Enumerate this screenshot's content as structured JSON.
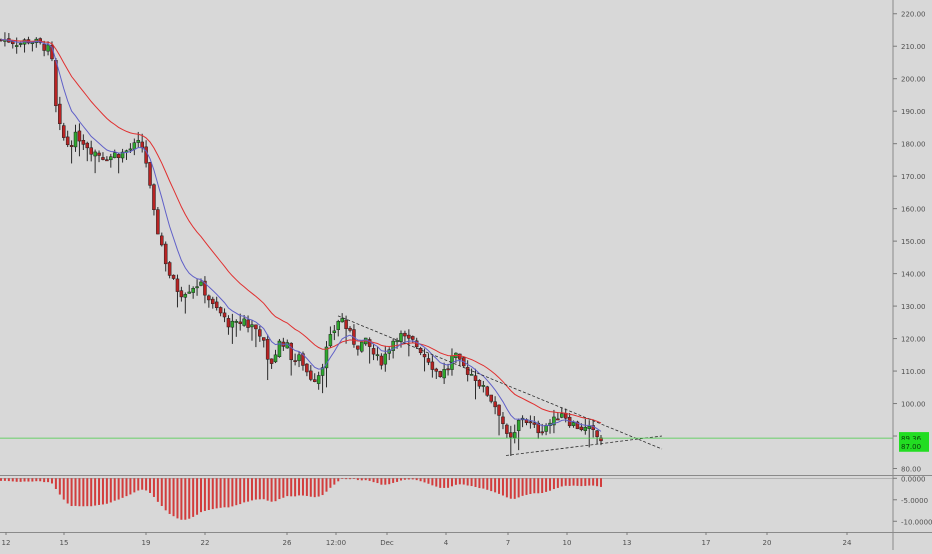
{
  "chart_data": {
    "type": "candlestick",
    "main_panel": {
      "y_axis": {
        "range": [
          84,
          220
        ],
        "tick_labels": [
          "220.00",
          "210.00",
          "200.00",
          "190.00",
          "180.00",
          "170.00",
          "160.00",
          "150.00",
          "140.00",
          "130.00",
          "120.00",
          "110.00",
          "100.00",
          "90.00",
          "80.00"
        ],
        "tick_values": [
          220,
          210,
          200,
          190,
          180,
          170,
          160,
          150,
          140,
          130,
          120,
          110,
          100,
          90,
          80
        ]
      },
      "x_axis": {
        "tick_labels": [
          "12",
          "15",
          "19",
          "22",
          "26",
          "12:00",
          "Dec",
          "4",
          "7",
          "10",
          "13",
          "17",
          "20",
          "24"
        ],
        "tick_positions": [
          6,
          64,
          146,
          205,
          287,
          336,
          387,
          446,
          508,
          567,
          627,
          706,
          767,
          847
        ]
      },
      "last_price_label": "89.36",
      "current_price_label": "87.00",
      "last_price": 89.36,
      "current_price": 87.0,
      "horizontal_line": 89.36,
      "candles_count": 154,
      "series": [
        {
          "kind": "ema_fast",
          "color": "#6060c8"
        },
        {
          "kind": "ema_slow",
          "color": "#e03030"
        }
      ],
      "trendlines": [
        {
          "from": [
            338,
            127
          ],
          "to": [
            662,
            86
          ]
        },
        {
          "from": [
            506,
            84
          ],
          "to": [
            662,
            90
          ]
        }
      ],
      "anchors": [
        [
          0,
          212
        ],
        [
          8,
          212
        ],
        [
          20,
          211
        ],
        [
          30,
          212
        ],
        [
          42,
          210
        ],
        [
          47,
          210
        ],
        [
          52,
          205
        ],
        [
          55,
          193
        ],
        [
          58,
          186
        ],
        [
          62,
          183
        ],
        [
          66,
          180
        ],
        [
          70,
          180
        ],
        [
          75,
          182
        ],
        [
          80,
          182
        ],
        [
          86,
          180
        ],
        [
          92,
          178
        ],
        [
          98,
          177
        ],
        [
          104,
          176
        ],
        [
          110,
          176
        ],
        [
          116,
          177
        ],
        [
          122,
          177
        ],
        [
          128,
          178
        ],
        [
          134,
          179
        ],
        [
          140,
          180
        ],
        [
          144,
          178
        ],
        [
          148,
          171
        ],
        [
          152,
          161
        ],
        [
          156,
          155
        ],
        [
          160,
          151
        ],
        [
          164,
          146
        ],
        [
          168,
          141
        ],
        [
          172,
          138
        ],
        [
          176,
          136
        ],
        [
          180,
          134
        ],
        [
          186,
          135
        ],
        [
          192,
          136
        ],
        [
          198,
          137
        ],
        [
          204,
          135
        ],
        [
          208,
          133
        ],
        [
          212,
          130
        ],
        [
          216,
          129
        ],
        [
          220,
          128
        ],
        [
          224,
          126
        ],
        [
          228,
          125
        ],
        [
          232,
          124
        ],
        [
          236,
          124
        ],
        [
          240,
          125
        ],
        [
          244,
          126
        ],
        [
          248,
          124
        ],
        [
          252,
          124
        ],
        [
          256,
          123
        ],
        [
          260,
          122
        ],
        [
          264,
          118
        ],
        [
          268,
          112
        ],
        [
          272,
          113
        ],
        [
          276,
          116
        ],
        [
          280,
          119
        ],
        [
          284,
          119
        ],
        [
          288,
          117
        ],
        [
          292,
          114
        ],
        [
          296,
          113
        ],
        [
          300,
          114
        ],
        [
          304,
          112
        ],
        [
          308,
          109
        ],
        [
          312,
          108
        ],
        [
          316,
          108
        ],
        [
          320,
          110
        ],
        [
          324,
          114
        ],
        [
          328,
          118
        ],
        [
          332,
          121
        ],
        [
          336,
          124
        ],
        [
          340,
          127
        ],
        [
          344,
          125
        ],
        [
          348,
          122
        ],
        [
          352,
          120
        ],
        [
          356,
          118
        ],
        [
          360,
          118
        ],
        [
          364,
          119
        ],
        [
          368,
          118
        ],
        [
          372,
          116
        ],
        [
          376,
          114
        ],
        [
          380,
          113
        ],
        [
          384,
          114
        ],
        [
          388,
          117
        ],
        [
          392,
          119
        ],
        [
          396,
          121
        ],
        [
          400,
          121
        ],
        [
          404,
          120
        ],
        [
          408,
          119
        ],
        [
          412,
          119
        ],
        [
          416,
          118
        ],
        [
          420,
          117
        ],
        [
          424,
          115
        ],
        [
          428,
          114
        ],
        [
          432,
          112
        ],
        [
          436,
          110
        ],
        [
          440,
          109
        ],
        [
          444,
          110
        ],
        [
          448,
          111
        ],
        [
          452,
          114
        ],
        [
          456,
          114
        ],
        [
          460,
          112
        ],
        [
          464,
          111
        ],
        [
          468,
          110
        ],
        [
          472,
          109
        ],
        [
          476,
          108
        ],
        [
          480,
          106
        ],
        [
          484,
          104
        ],
        [
          488,
          103
        ],
        [
          492,
          101
        ],
        [
          496,
          99
        ],
        [
          500,
          97
        ],
        [
          504,
          93
        ],
        [
          508,
          88
        ],
        [
          512,
          89
        ],
        [
          516,
          91
        ],
        [
          520,
          96
        ],
        [
          524,
          96
        ],
        [
          528,
          94
        ],
        [
          532,
          93
        ],
        [
          536,
          92
        ],
        [
          540,
          92
        ],
        [
          544,
          93
        ],
        [
          548,
          94
        ],
        [
          552,
          94
        ],
        [
          556,
          95
        ],
        [
          560,
          98
        ],
        [
          564,
          97
        ],
        [
          568,
          95
        ],
        [
          572,
          94
        ],
        [
          576,
          93
        ],
        [
          580,
          93
        ],
        [
          584,
          92
        ],
        [
          588,
          92
        ],
        [
          592,
          91
        ],
        [
          596,
          90
        ],
        [
          600,
          89
        ]
      ]
    },
    "oscillator_panel": {
      "y_axis": {
        "range": [
          -12.5,
          0.3
        ],
        "tick_labels": [
          "0.0000",
          "-5.0000",
          "-10.0000"
        ],
        "tick_values": [
          0,
          -5,
          -10
        ]
      },
      "bar_color": "#d23c3c"
    }
  }
}
